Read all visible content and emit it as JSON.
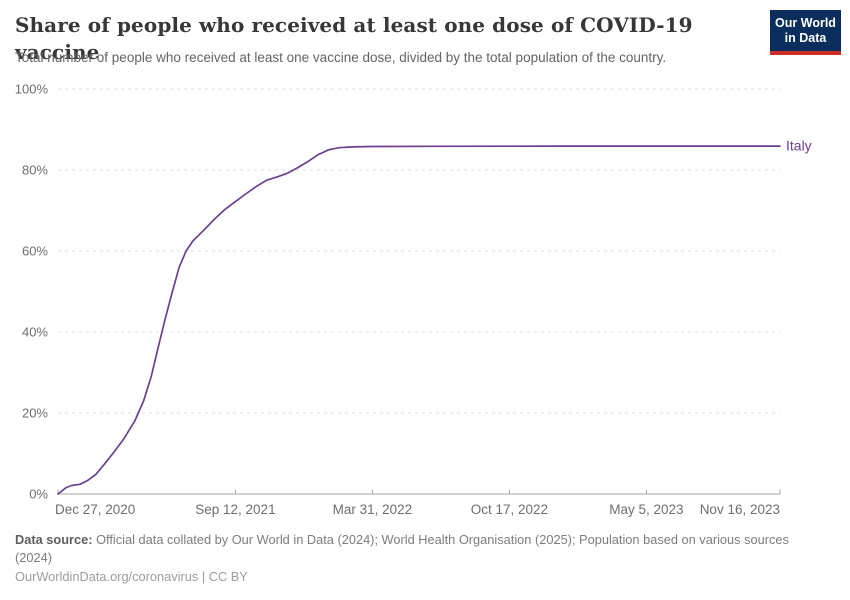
{
  "header": {
    "logo_line1": "Our World",
    "logo_line2": "in Data"
  },
  "chart_data": {
    "type": "line",
    "title": "Share of people who received at least one dose of COVID-19 vaccine",
    "subtitle": "Total number of people who received at least one vaccine dose, divided by the total population of the country.",
    "x_range": [
      "2020-12-27",
      "2023-11-16"
    ],
    "ylim": [
      0,
      100
    ],
    "yticks": [
      0,
      20,
      40,
      60,
      80,
      100
    ],
    "ytick_labels": [
      "0%",
      "20%",
      "40%",
      "60%",
      "80%",
      "100%"
    ],
    "xticks": [
      {
        "date": "2020-12-27",
        "label": "Dec 27, 2020"
      },
      {
        "date": "2021-09-12",
        "label": "Sep 12, 2021"
      },
      {
        "date": "2022-03-31",
        "label": "Mar 31, 2022"
      },
      {
        "date": "2022-10-17",
        "label": "Oct 17, 2022"
      },
      {
        "date": "2023-05-05",
        "label": "May 5, 2023"
      },
      {
        "date": "2023-11-16",
        "label": "Nov 16, 2023"
      }
    ],
    "grid": "horizontal-dashed",
    "legend_position": "line-end",
    "series": [
      {
        "name": "Italy",
        "color": "#6D3E91",
        "points": [
          [
            "2020-12-27",
            0
          ],
          [
            "2021-01-02",
            0.8
          ],
          [
            "2021-01-08",
            1.6
          ],
          [
            "2021-01-16",
            2.1
          ],
          [
            "2021-01-28",
            2.4
          ],
          [
            "2021-02-08",
            3.3
          ],
          [
            "2021-02-20",
            4.8
          ],
          [
            "2021-03-04",
            7.2
          ],
          [
            "2021-03-18",
            10.2
          ],
          [
            "2021-04-02",
            13.6
          ],
          [
            "2021-04-18",
            18.0
          ],
          [
            "2021-05-01",
            23.0
          ],
          [
            "2021-05-12",
            29.0
          ],
          [
            "2021-05-22",
            36.0
          ],
          [
            "2021-06-01",
            43.0
          ],
          [
            "2021-06-12",
            50.0
          ],
          [
            "2021-06-22",
            56.0
          ],
          [
            "2021-07-02",
            60.0
          ],
          [
            "2021-07-12",
            62.5
          ],
          [
            "2021-07-27",
            65.0
          ],
          [
            "2021-08-12",
            67.8
          ],
          [
            "2021-08-28",
            70.3
          ],
          [
            "2021-09-12",
            72.2
          ],
          [
            "2021-09-28",
            74.2
          ],
          [
            "2021-10-13",
            76.0
          ],
          [
            "2021-10-28",
            77.5
          ],
          [
            "2021-11-12",
            78.3
          ],
          [
            "2021-11-27",
            79.2
          ],
          [
            "2021-12-12",
            80.6
          ],
          [
            "2021-12-27",
            82.1
          ],
          [
            "2022-01-11",
            83.8
          ],
          [
            "2022-01-26",
            85.0
          ],
          [
            "2022-02-10",
            85.5
          ],
          [
            "2022-03-02",
            85.7
          ],
          [
            "2022-03-31",
            85.8
          ],
          [
            "2022-06-30",
            85.85
          ],
          [
            "2022-12-31",
            85.9
          ],
          [
            "2023-06-30",
            85.9
          ],
          [
            "2023-11-16",
            85.9
          ]
        ]
      }
    ]
  },
  "footer": {
    "data_source_label": "Data source:",
    "data_source_text": "Official data collated by Our World in Data (2024); World Health Organisation (2025); Population based on various sources (2024)",
    "citation": "OurWorldinData.org/coronavirus | CC BY"
  },
  "colors": {
    "line": "#6D3E91",
    "logo_background": "#0b2e5c",
    "logo_accent": "#cf2e27",
    "gridline": "#dddddd",
    "axis": "#a5a5a5",
    "axis_text": "#6e6e6e"
  }
}
